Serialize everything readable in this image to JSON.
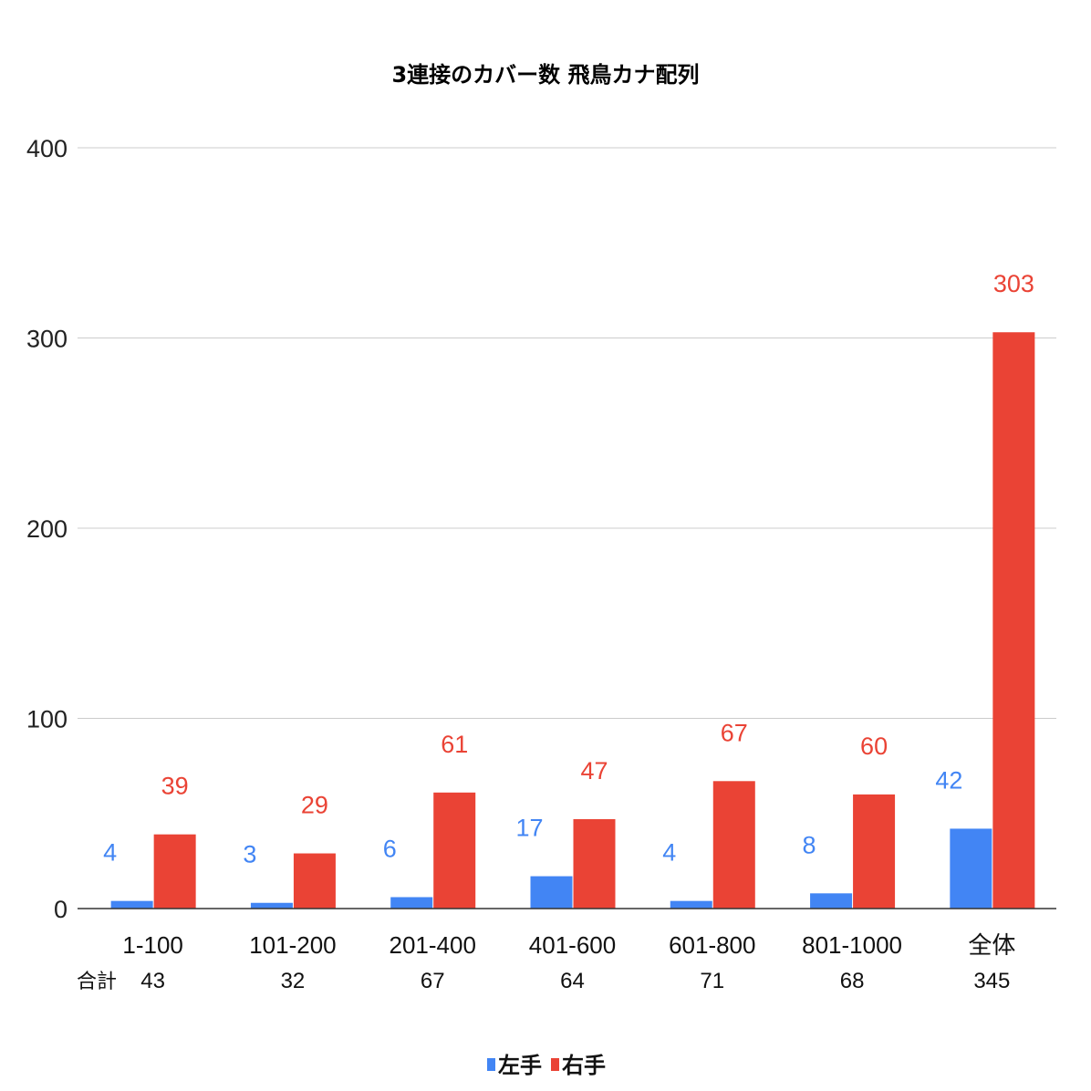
{
  "chart_data": {
    "type": "bar",
    "title": "3連接のカバー数 飛鳥カナ配列",
    "categories": [
      "1-100",
      "101-200",
      "201-400",
      "401-600",
      "601-800",
      "801-1000",
      "全体"
    ],
    "totals_label": "合計",
    "totals": [
      "43",
      "32",
      "67",
      "64",
      "71",
      "68",
      "345"
    ],
    "series": [
      {
        "name": "左手",
        "color": "#4285f4",
        "values": [
          4,
          3,
          6,
          17,
          4,
          8,
          42
        ]
      },
      {
        "name": "右手",
        "color": "#ea4335",
        "values": [
          39,
          29,
          61,
          47,
          67,
          60,
          303
        ]
      }
    ],
    "ylim": [
      0,
      400
    ],
    "yticks": [
      0,
      100,
      200,
      300,
      400
    ],
    "grid": true,
    "legend_position": "bottom"
  }
}
